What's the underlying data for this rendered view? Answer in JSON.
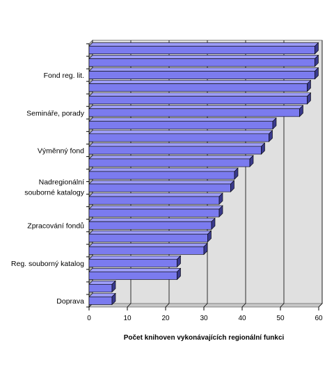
{
  "chart_data": {
    "type": "bar",
    "orientation": "horizontal",
    "style": "3d",
    "xlabel": "Počet knihoven vykonávajících regionální funkci",
    "xlim": [
      0,
      60
    ],
    "xticks": [
      "0",
      "10",
      "20",
      "30",
      "40",
      "50",
      "60"
    ],
    "grid": true,
    "legend": "none",
    "categories": [
      "",
      "",
      "Fond reg. lit.",
      "",
      "",
      "Semináře, porady",
      "",
      "",
      "Výměnný fond",
      "",
      "",
      "Nadregionální souborné katalogy",
      "",
      "",
      "Zpracování fondů",
      "",
      "",
      "Reg. souborný katalog",
      "",
      "",
      "Doprava"
    ],
    "values": [
      59,
      59,
      59,
      57,
      57,
      55,
      48,
      47,
      45,
      42,
      38,
      37,
      34,
      34,
      32,
      31,
      30,
      23,
      23,
      6,
      6
    ],
    "colors": {
      "bar_front": "#7B7BEF",
      "bar_top": "#9C9CF7",
      "bar_side": "#3A3A8C",
      "plot_back": "#E0E0E0",
      "wall_side": "#A8A8A8",
      "gridline": "#000000"
    }
  }
}
